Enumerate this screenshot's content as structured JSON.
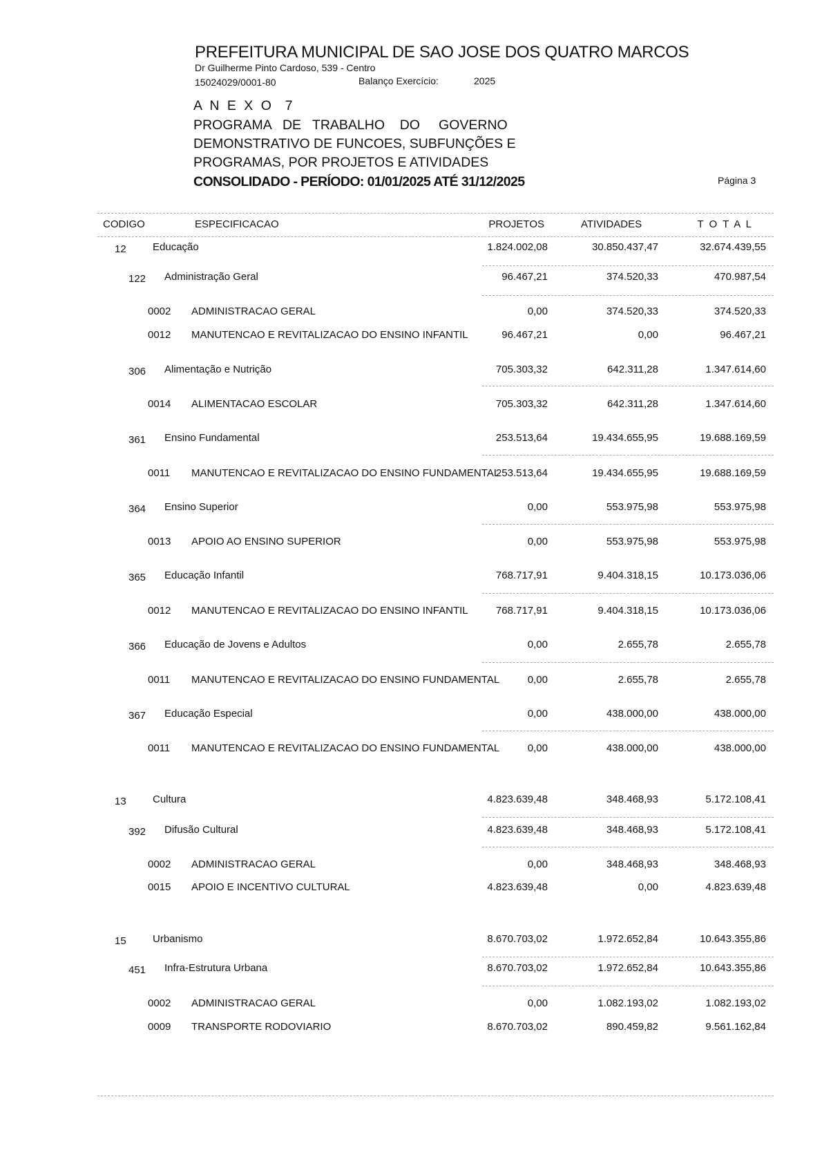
{
  "header": {
    "title": "PREFEITURA MUNICIPAL DE SAO JOSE DOS QUATRO MARCOS",
    "address": "Dr Guilherme Pinto Cardoso, 539 - Centro",
    "cnpj": "15024029/0001-80",
    "exercise_label": "Balanço Exercício:",
    "exercise_year": "2025",
    "annex": "A N E X O  7",
    "line1": "PROGRAMA   DE   TRABALHO    DO     GOVERNO",
    "line2": "DEMONSTRATIVO DE FUNCOES, SUBFUNÇÕES E",
    "line3": "PROGRAMAS, POR PROJETOS E ATIVIDADES",
    "period": "CONSOLIDADO - PERÍODO: 01/01/2025 ATÉ 31/12/2025",
    "page": "Página 3"
  },
  "columns": {
    "code": "CODIGO",
    "spec": "ESPECIFICACAO",
    "projects": "PROJETOS",
    "activities": "ATIVIDADES",
    "total": "T O T A L"
  },
  "rows": [
    {
      "level": "function",
      "code": "12",
      "name": "Educação",
      "projects": "1.824.002,08",
      "activities": "30.850.437,47",
      "total": "32.674.439,55"
    },
    {
      "level": "subfunction",
      "code": "122",
      "name": "Administração Geral",
      "projects": "96.467,21",
      "activities": "374.520,33",
      "total": "470.987,54"
    },
    {
      "level": "program",
      "code": "0002",
      "name": "ADMINISTRACAO GERAL",
      "projects": "0,00",
      "activities": "374.520,33",
      "total": "374.520,33"
    },
    {
      "level": "program",
      "code": "0012",
      "name": "MANUTENCAO E REVITALIZACAO DO ENSINO INFANTIL",
      "projects": "96.467,21",
      "activities": "0,00",
      "total": "96.467,21"
    },
    {
      "level": "subfunction",
      "code": "306",
      "name": "Alimentação e Nutrição",
      "projects": "705.303,32",
      "activities": "642.311,28",
      "total": "1.347.614,60"
    },
    {
      "level": "program",
      "code": "0014",
      "name": "ALIMENTACAO ESCOLAR",
      "projects": "705.303,32",
      "activities": "642.311,28",
      "total": "1.347.614,60"
    },
    {
      "level": "subfunction",
      "code": "361",
      "name": "Ensino Fundamental",
      "projects": "253.513,64",
      "activities": "19.434.655,95",
      "total": "19.688.169,59"
    },
    {
      "level": "program",
      "code": "0011",
      "name": "MANUTENCAO E REVITALIZACAO DO ENSINO FUNDAMENTAL",
      "projects": "253.513,64",
      "activities": "19.434.655,95",
      "total": "19.688.169,59"
    },
    {
      "level": "subfunction",
      "code": "364",
      "name": "Ensino Superior",
      "projects": "0,00",
      "activities": "553.975,98",
      "total": "553.975,98"
    },
    {
      "level": "program",
      "code": "0013",
      "name": "APOIO AO ENSINO SUPERIOR",
      "projects": "0,00",
      "activities": "553.975,98",
      "total": "553.975,98"
    },
    {
      "level": "subfunction",
      "code": "365",
      "name": "Educação Infantil",
      "projects": "768.717,91",
      "activities": "9.404.318,15",
      "total": "10.173.036,06"
    },
    {
      "level": "program",
      "code": "0012",
      "name": "MANUTENCAO E REVITALIZACAO DO ENSINO INFANTIL",
      "projects": "768.717,91",
      "activities": "9.404.318,15",
      "total": "10.173.036,06"
    },
    {
      "level": "subfunction",
      "code": "366",
      "name": "Educação de Jovens e Adultos",
      "projects": "0,00",
      "activities": "2.655,78",
      "total": "2.655,78"
    },
    {
      "level": "program",
      "code": "0011",
      "name": "MANUTENCAO E REVITALIZACAO DO ENSINO FUNDAMENTAL",
      "projects": "0,00",
      "activities": "2.655,78",
      "total": "2.655,78"
    },
    {
      "level": "subfunction",
      "code": "367",
      "name": "Educação Especial",
      "projects": "0,00",
      "activities": "438.000,00",
      "total": "438.000,00"
    },
    {
      "level": "program",
      "code": "0011",
      "name": "MANUTENCAO E REVITALIZACAO DO ENSINO FUNDAMENTAL",
      "projects": "0,00",
      "activities": "438.000,00",
      "total": "438.000,00"
    },
    {
      "level": "function",
      "code": "13",
      "name": "Cultura",
      "projects": "4.823.639,48",
      "activities": "348.468,93",
      "total": "5.172.108,41"
    },
    {
      "level": "subfunction",
      "code": "392",
      "name": "Difusão Cultural",
      "projects": "4.823.639,48",
      "activities": "348.468,93",
      "total": "5.172.108,41"
    },
    {
      "level": "program",
      "code": "0002",
      "name": "ADMINISTRACAO GERAL",
      "projects": "0,00",
      "activities": "348.468,93",
      "total": "348.468,93"
    },
    {
      "level": "program",
      "code": "0015",
      "name": "APOIO E INCENTIVO CULTURAL",
      "projects": "4.823.639,48",
      "activities": "0,00",
      "total": "4.823.639,48"
    },
    {
      "level": "function",
      "code": "15",
      "name": "Urbanismo",
      "projects": "8.670.703,02",
      "activities": "1.972.652,84",
      "total": "10.643.355,86"
    },
    {
      "level": "subfunction",
      "code": "451",
      "name": "Infra-Estrutura Urbana",
      "projects": "8.670.703,02",
      "activities": "1.972.652,84",
      "total": "10.643.355,86"
    },
    {
      "level": "program",
      "code": "0002",
      "name": "ADMINISTRACAO GERAL",
      "projects": "0,00",
      "activities": "1.082.193,02",
      "total": "1.082.193,02"
    },
    {
      "level": "program",
      "code": "0009",
      "name": "TRANSPORTE RODOVIARIO",
      "projects": "8.670.703,02",
      "activities": "890.459,82",
      "total": "9.561.162,84"
    }
  ]
}
